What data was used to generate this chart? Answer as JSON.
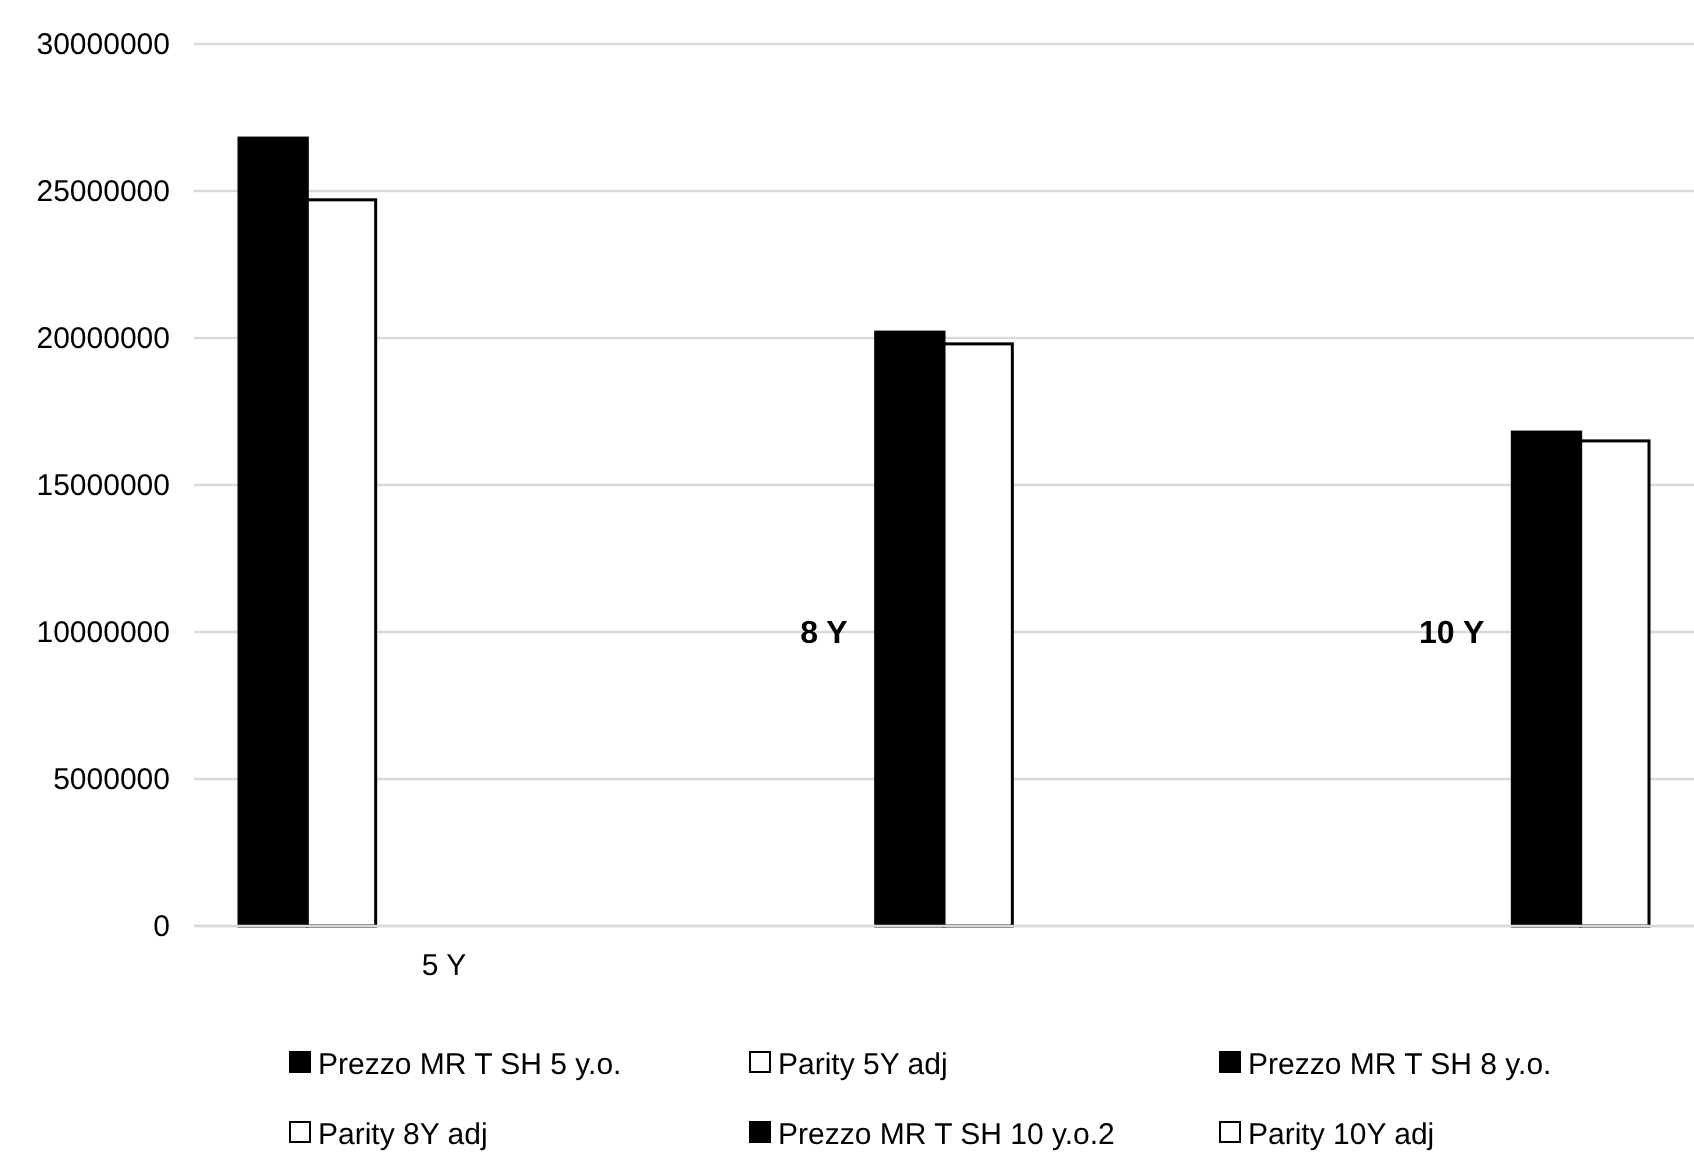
{
  "chart_data": {
    "type": "bar",
    "categories": [
      "5 Y",
      null,
      null
    ],
    "series": [
      {
        "name": "Prezzo MR T SH 5 y.o.",
        "color": "#000000",
        "values": [
          26800000,
          null,
          null
        ]
      },
      {
        "name": "Parity 5Y adj",
        "color": "#ffffff",
        "values": [
          24700000,
          null,
          null
        ]
      },
      {
        "name": "Prezzo MR T SH 8 y.o.",
        "color": "#000000",
        "values": [
          null,
          20200000,
          null
        ]
      },
      {
        "name": "Parity 8Y adj",
        "color": "#ffffff",
        "values": [
          null,
          19800000,
          null
        ]
      },
      {
        "name": "Prezzo MR T SH 10 y.o.2",
        "color": "#000000",
        "values": [
          null,
          null,
          16800000
        ]
      },
      {
        "name": "Parity 10Y adj",
        "color": "#ffffff",
        "values": [
          null,
          null,
          16500000
        ]
      }
    ],
    "ylim": [
      0,
      30000000
    ],
    "yticks": [
      0,
      5000000,
      10000000,
      15000000,
      20000000,
      25000000,
      30000000
    ],
    "grid": "y",
    "legend": "bottom",
    "annotations": [
      "8 Y",
      "10 Y"
    ]
  }
}
